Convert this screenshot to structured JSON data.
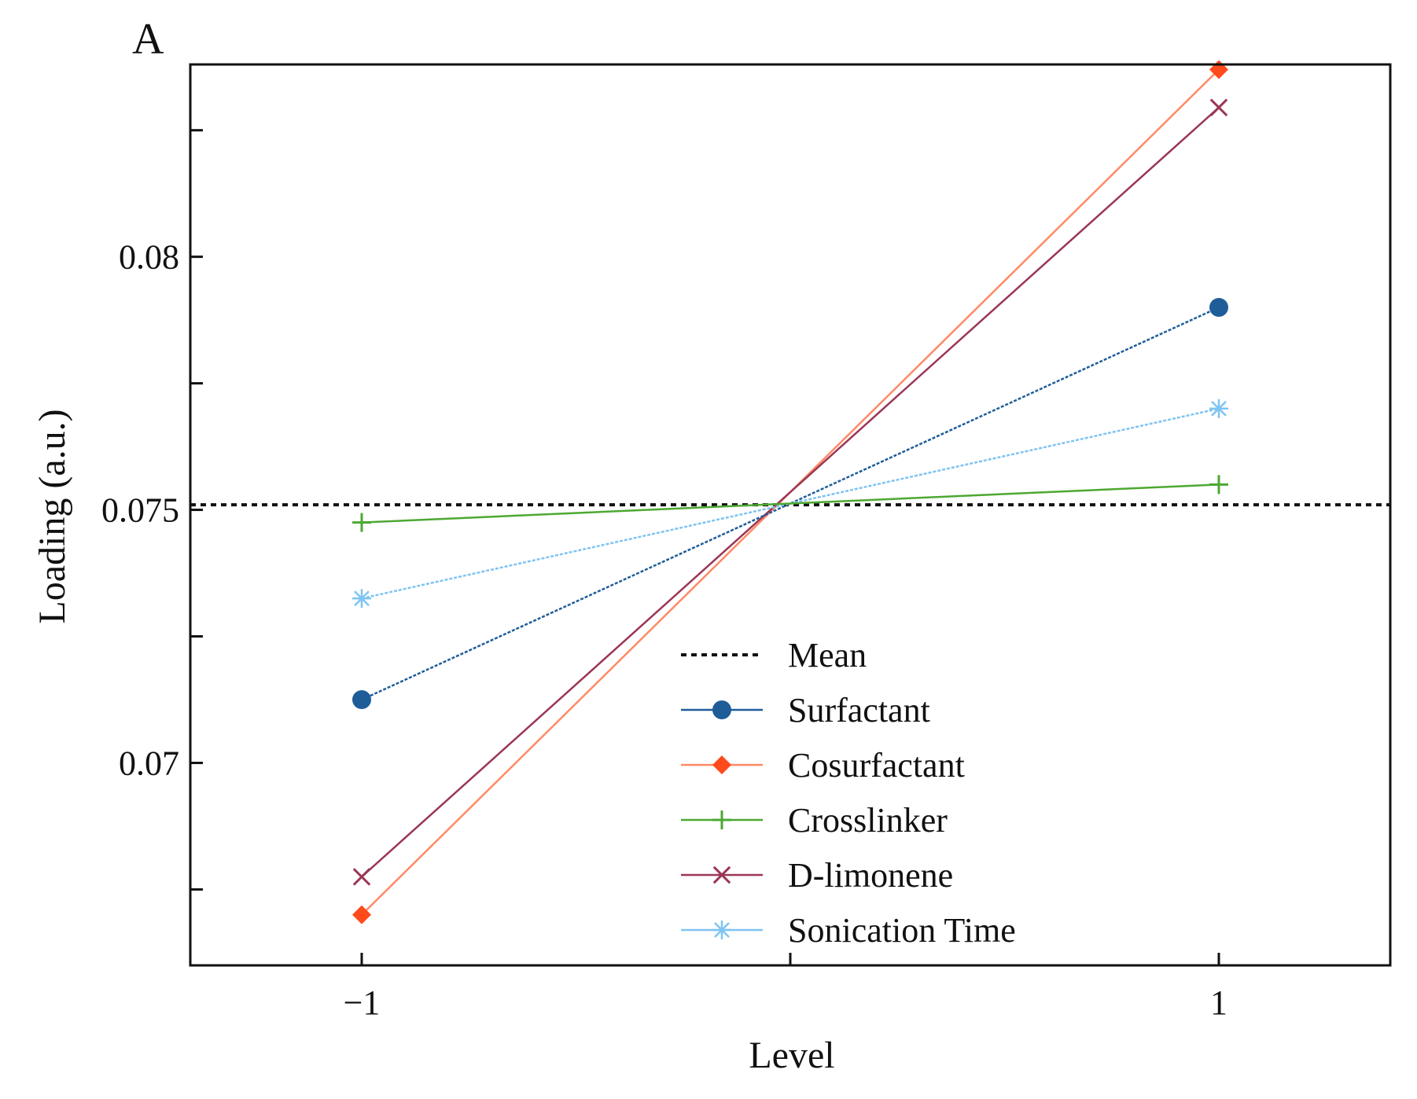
{
  "chart_data": {
    "type": "line",
    "panel_label": "A",
    "title": "",
    "xlabel": "Level",
    "ylabel": "Loading (a.u.)",
    "x": [
      -1,
      1
    ],
    "x_ticks": [
      -1,
      0,
      1
    ],
    "x_tick_labels": [
      "−1",
      "",
      "1"
    ],
    "xlim": [
      -1.4,
      1.4
    ],
    "ylim": [
      0.066,
      0.0838
    ],
    "y_ticks": [
      0.0675,
      0.07,
      0.0725,
      0.075,
      0.0775,
      0.08,
      0.0825
    ],
    "y_tick_labels": [
      "",
      "0.07",
      "",
      "0.075",
      "",
      "0.08",
      ""
    ],
    "mean": {
      "name": "Mean",
      "value": 0.0751,
      "color": "#111111"
    },
    "series": [
      {
        "name": "Surfactant",
        "values": [
          0.07125,
          0.079
        ],
        "color": "#1f5d99",
        "marker": "circle"
      },
      {
        "name": "Cosurfactant",
        "values": [
          0.067,
          0.0837
        ],
        "color": "#ff4a1c",
        "line_color": "#ff8a66",
        "marker": "diamond"
      },
      {
        "name": "Crosslinker",
        "values": [
          0.07475,
          0.0755
        ],
        "color": "#4da832",
        "marker": "plus"
      },
      {
        "name": "D-limonene",
        "values": [
          0.06775,
          0.08295
        ],
        "color": "#9b3655",
        "marker": "x"
      },
      {
        "name": "Sonication  Time",
        "values": [
          0.07325,
          0.077
        ],
        "color": "#7fc4f2",
        "marker": "star"
      }
    ],
    "legend_position": "lower-right"
  }
}
